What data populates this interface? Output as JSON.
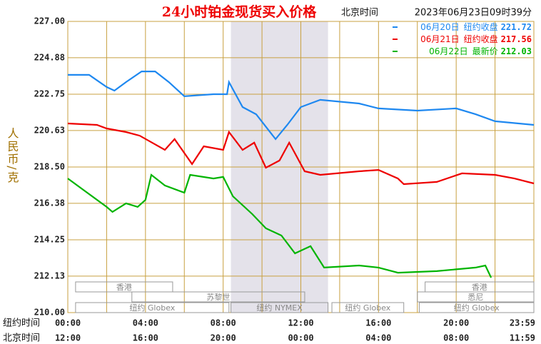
{
  "chart_data": {
    "type": "line",
    "title": "24小时铂金现货买入价格",
    "subtitle": {
      "timezone": "北京时间",
      "datetime": "2023年06月23日09时39分"
    },
    "y_label": "人民币/克",
    "x_row_titles": [
      "纽约时间",
      "北京时间"
    ],
    "xlim": [
      0,
      24
    ],
    "xticks": [
      {
        "value": 0,
        "label": "00:00"
      },
      {
        "value": 4,
        "label": "04:00"
      },
      {
        "value": 8,
        "label": "08:00"
      },
      {
        "value": 12,
        "label": "12:00"
      },
      {
        "value": 16,
        "label": "16:00"
      },
      {
        "value": 20,
        "label": "20:00"
      },
      {
        "value": 24,
        "label": "23:59"
      }
    ],
    "xticks_beijing": [
      "12:00",
      "16:00",
      "20:00",
      "00:00",
      "04:00",
      "08:00",
      "11:59"
    ],
    "x_minor_ticks": [
      2,
      6,
      10,
      14,
      18,
      22
    ],
    "ylim": [
      210,
      227
    ],
    "yticks": [
      {
        "value": 210,
        "label": "210.00"
      },
      212.13,
      214.25,
      216.38,
      {
        "value": 218.5,
        "label": "218.50"
      },
      220.63,
      222.75,
      224.88,
      {
        "value": 227,
        "label": "227.00"
      }
    ],
    "grid": true,
    "sessions": [
      {
        "name": "香港",
        "start": 0.4,
        "end": 5.4,
        "row": 0
      },
      {
        "name": "香港",
        "start": 18.4,
        "end": 24,
        "row": 0
      },
      {
        "name": "苏黎世",
        "start": 3.3,
        "end": 12.2,
        "row": 1
      },
      {
        "name": "悉尼",
        "start": 18,
        "end": 24,
        "row": 1
      },
      {
        "name": "纽约 Globex",
        "start": 0.4,
        "end": 8.3,
        "row": 2
      },
      {
        "name": "纽约 NYMEX",
        "start": 8.4,
        "end": 13.4,
        "row": 2,
        "shaded": true
      },
      {
        "name": "纽约 Globex",
        "start": 13.6,
        "end": 17.3,
        "row": 2
      },
      {
        "name": "纽约 Globex",
        "start": 18.1,
        "end": 24,
        "row": 2
      }
    ],
    "series": [
      {
        "name": "06月20日",
        "close_label": "纽约收盘",
        "close_value": 221.72,
        "color": "#1e88f0",
        "x": [
          0,
          1.1,
          2,
          2.4,
          3,
          3.8,
          4.5,
          5.2,
          6,
          7.5,
          8.2,
          8.3,
          9,
          9.7,
          10.7,
          11.3,
          12,
          13,
          15,
          16,
          18,
          20,
          21,
          22,
          24
        ],
        "values": [
          223.88,
          223.88,
          223.17,
          222.96,
          223.46,
          224.08,
          224.08,
          223.46,
          222.63,
          222.75,
          222.75,
          223.46,
          222.0,
          221.58,
          220.13,
          220.96,
          222.0,
          222.42,
          222.21,
          221.92,
          221.79,
          221.92,
          221.58,
          221.17,
          220.96
        ]
      },
      {
        "name": "06月21日",
        "close_label": "纽约收盘",
        "close_value": 217.56,
        "color": "#ee0000",
        "x": [
          0,
          1.5,
          2,
          3,
          3.7,
          5,
          5.5,
          6.4,
          7,
          8,
          8.3,
          9,
          9.6,
          10.2,
          10.9,
          11.4,
          12.2,
          13,
          15,
          16,
          17,
          17.3,
          19,
          20.3,
          22,
          23,
          24
        ],
        "values": [
          221.04,
          220.96,
          220.75,
          220.54,
          220.33,
          219.5,
          220.13,
          218.67,
          219.71,
          219.5,
          220.54,
          219.5,
          219.92,
          218.46,
          218.88,
          219.92,
          218.25,
          218.04,
          218.25,
          218.33,
          217.83,
          217.5,
          217.63,
          218.13,
          218.04,
          217.83,
          217.54
        ]
      },
      {
        "name": "06月22日",
        "close_label": "最新价",
        "close_value": 212.03,
        "color": "#00b400",
        "x": [
          0,
          1,
          2,
          2.3,
          3,
          3.6,
          4,
          4.3,
          5,
          6,
          6.3,
          7.5,
          8,
          8.5,
          9.5,
          10.2,
          11,
          11.7,
          12.5,
          13.2,
          15,
          16,
          17,
          19,
          21,
          21.5,
          21.8
        ],
        "values": [
          217.83,
          217.0,
          216.17,
          215.88,
          216.38,
          216.17,
          216.58,
          218.04,
          217.42,
          217.0,
          218.04,
          217.83,
          217.92,
          216.79,
          215.75,
          214.92,
          214.5,
          213.46,
          213.88,
          212.63,
          212.75,
          212.63,
          212.33,
          212.42,
          212.63,
          212.75,
          212.04
        ]
      }
    ]
  }
}
